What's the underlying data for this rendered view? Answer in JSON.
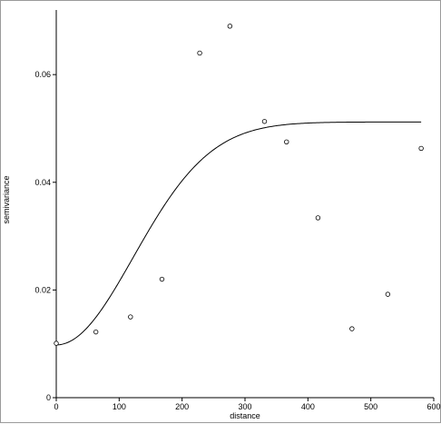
{
  "chart_data": {
    "type": "scatter",
    "title": "",
    "xlabel": "distance",
    "ylabel": "semivariance",
    "xlim": [
      0,
      600
    ],
    "ylim": [
      0,
      0.072
    ],
    "x_ticks": [
      0,
      100,
      200,
      300,
      400,
      500,
      600
    ],
    "x_tick_labels": [
      "0",
      "100",
      "200",
      "300",
      "400",
      "500",
      "600"
    ],
    "y_ticks": [
      0,
      0.02,
      0.04,
      0.06
    ],
    "y_tick_labels": [
      "0",
      "0.02",
      "0.04",
      "0.06"
    ],
    "grid": false,
    "legend": "none",
    "points": {
      "x": [
        0,
        63,
        118,
        168,
        228,
        276,
        331,
        366,
        416,
        470,
        527,
        580
      ],
      "y": [
        0.0101,
        0.0122,
        0.015,
        0.022,
        0.064,
        0.069,
        0.0513,
        0.0475,
        0.0334,
        0.0128,
        0.0192,
        0.0463
      ]
    },
    "fitted_curve": {
      "model": "gaussian",
      "nugget": 0.0098,
      "sill": 0.0512,
      "range": 300,
      "x_max": 580
    },
    "colors": {
      "marks": "#000000",
      "axes": "#000000",
      "frame": "#9a9a9a"
    }
  }
}
